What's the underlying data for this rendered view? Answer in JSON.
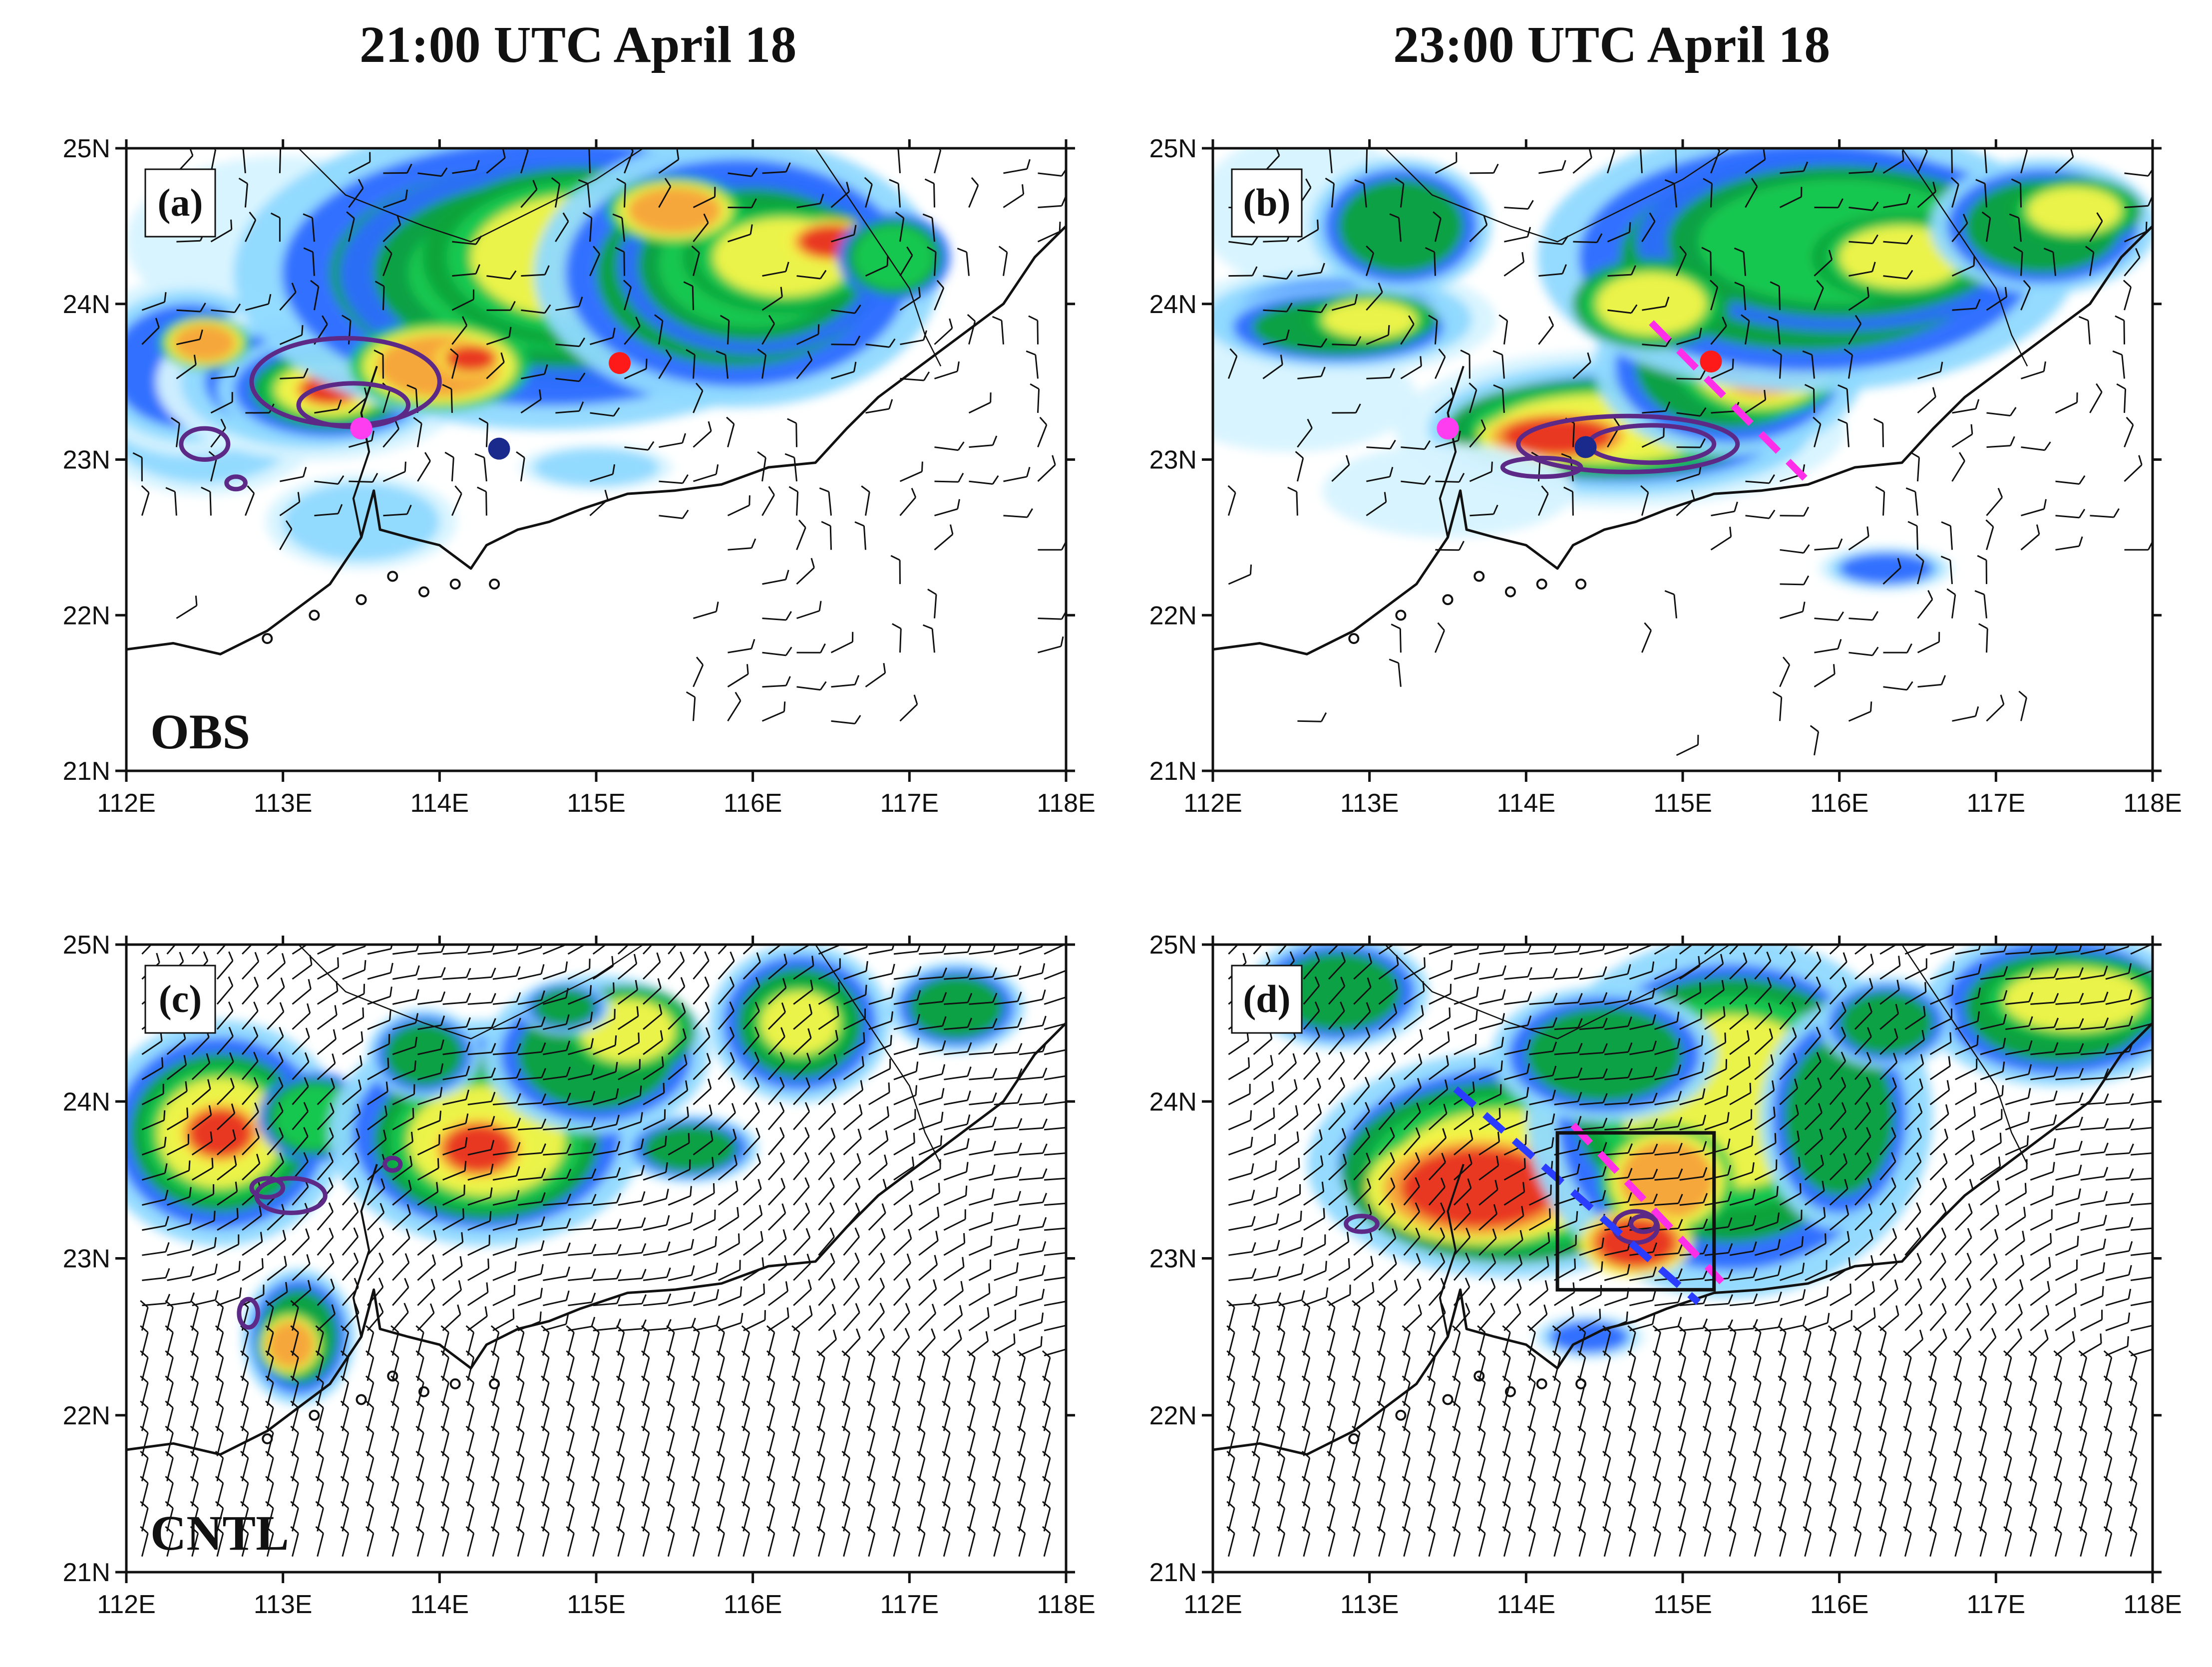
{
  "figure": {
    "column_titles": [
      "21:00 UTC April 18",
      "23:00 UTC April 18"
    ],
    "row_labels": [
      "OBS",
      "CNTL"
    ],
    "lon_ticks": [
      "112E",
      "113E",
      "114E",
      "115E",
      "116E",
      "117E",
      "118E"
    ],
    "lat_ticks": [
      "21N",
      "22N",
      "23N",
      "24N",
      "25N"
    ],
    "lon_range": [
      112,
      118
    ],
    "lat_range": [
      21,
      25
    ]
  },
  "colors": {
    "reflectivity": [
      "#d6f3ff",
      "#8fd9ff",
      "#2b6bff",
      "#10a33a",
      "#16c950",
      "#f5f548",
      "#f7a23a",
      "#e8331f"
    ],
    "contour": "#5c2a86",
    "marker_magenta": "#ff3df0",
    "marker_red": "#ff1a1a",
    "marker_navy": "#1a2a8c",
    "dashed_magenta": "#ff2ee8",
    "dashed_blue": "#2a3cff"
  },
  "panels": [
    {
      "id": "a",
      "label": "(a)",
      "row_label": "OBS",
      "markers": [
        {
          "lon": 113.5,
          "lat": 23.2,
          "color": "magenta"
        },
        {
          "lon": 115.15,
          "lat": 23.62,
          "color": "red"
        },
        {
          "lon": 114.38,
          "lat": 23.07,
          "color": "navy"
        }
      ],
      "dashed_lines": [],
      "box": null
    },
    {
      "id": "b",
      "label": "(b)",
      "row_label": "",
      "markers": [
        {
          "lon": 113.5,
          "lat": 23.2,
          "color": "magenta"
        },
        {
          "lon": 115.18,
          "lat": 23.63,
          "color": "red"
        },
        {
          "lon": 114.38,
          "lat": 23.08,
          "color": "navy"
        }
      ],
      "dashed_lines": [
        {
          "color": "magenta",
          "from": [
            114.8,
            23.88
          ],
          "to": [
            115.78,
            22.88
          ]
        }
      ],
      "box": null
    },
    {
      "id": "c",
      "label": "(c)",
      "row_label": "CNTL",
      "markers": [],
      "dashed_lines": [],
      "box": null
    },
    {
      "id": "d",
      "label": "(d)",
      "row_label": "",
      "markers": [],
      "dashed_lines": [
        {
          "color": "blue",
          "from": [
            113.55,
            24.08
          ],
          "to": [
            115.1,
            22.72
          ]
        },
        {
          "color": "magenta",
          "from": [
            114.3,
            23.85
          ],
          "to": [
            115.25,
            22.85
          ]
        }
      ],
      "box": {
        "lon": [
          114.2,
          115.2
        ],
        "lat": [
          22.8,
          23.8
        ]
      }
    }
  ]
}
